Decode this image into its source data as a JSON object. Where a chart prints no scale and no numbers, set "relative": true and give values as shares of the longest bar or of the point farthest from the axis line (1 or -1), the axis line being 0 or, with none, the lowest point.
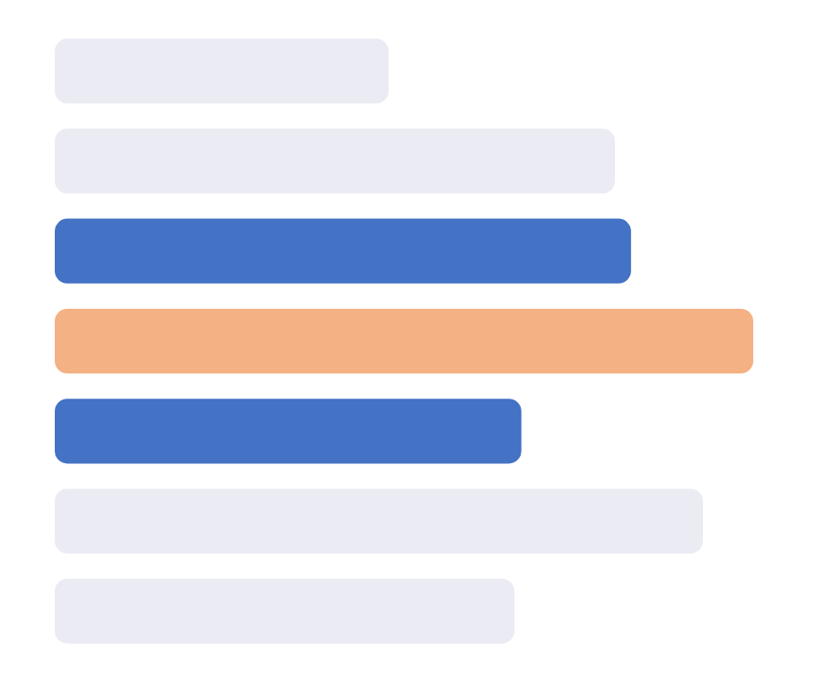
{
  "chart_data": {
    "type": "bar",
    "orientation": "horizontal",
    "relative": true,
    "categories": [
      null,
      null,
      null,
      null,
      null,
      null,
      null
    ],
    "values": [
      0.478,
      0.802,
      0.825,
      1,
      0.668,
      0.928,
      0.658
    ],
    "colors": [
      "#ebebf4",
      "#ebebf4",
      "#4472c4",
      "#f4b183",
      "#4472c4",
      "#ebebf4",
      "#ebebf4"
    ]
  }
}
